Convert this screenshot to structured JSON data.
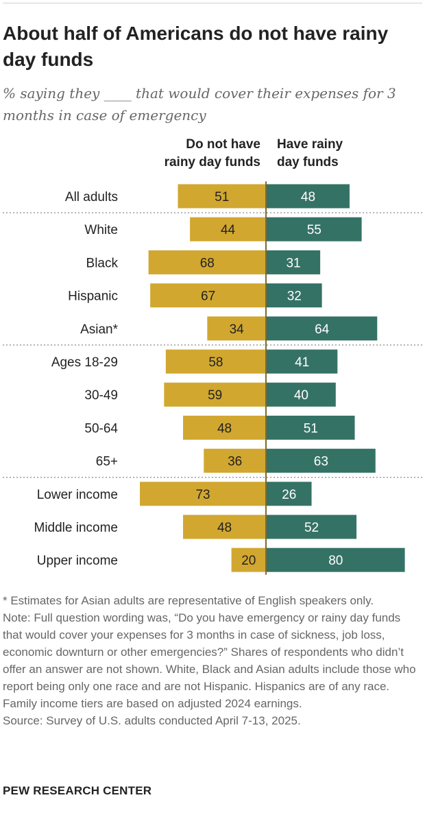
{
  "header": {
    "title": "About half of Americans do not have rainy day funds",
    "subtitle": "% saying they ____ that would cover their expenses for 3 months in case of emergency"
  },
  "colors": {
    "no_funds": "#D1A730",
    "have_funds": "#357266",
    "axis": "#7a6a2e",
    "divider": "#9a9a9a"
  },
  "chart_data": {
    "type": "bar",
    "orientation": "diverging-horizontal",
    "series": [
      {
        "name": "Do not have rainy day funds",
        "values": [
          51,
          44,
          68,
          67,
          34,
          58,
          59,
          48,
          36,
          73,
          48,
          20
        ]
      },
      {
        "name": "Have rainy day funds",
        "values": [
          48,
          55,
          31,
          32,
          64,
          41,
          40,
          51,
          63,
          26,
          52,
          80
        ]
      }
    ],
    "categories": [
      "All adults",
      "White",
      "Black",
      "Hispanic",
      "Asian*",
      "Ages 18-29",
      "30-49",
      "50-64",
      "65+",
      "Lower income",
      "Middle income",
      "Upper income"
    ],
    "groups": [
      {
        "start": 0,
        "end": 0
      },
      {
        "start": 1,
        "end": 4
      },
      {
        "start": 5,
        "end": 8
      },
      {
        "start": 9,
        "end": 11
      }
    ],
    "column_headers": {
      "left_line1": "Do not have",
      "left_line2": "rainy day funds",
      "right_line1": "Have rainy",
      "right_line2": "day funds"
    }
  },
  "notes": {
    "asterisk": "* Estimates for Asian adults are representative of English speakers only.",
    "note": "Note: Full question wording was, “Do you have emergency or rainy day funds that would cover your expenses for 3 months in case of sickness, job loss, economic downturn or other emergencies?” Shares of respondents who didn’t offer an answer are not shown. White, Black and Asian adults include those who report being only one race and are not Hispanic. Hispanics are of any race. Family income tiers are based on adjusted 2024 earnings.",
    "source": "Source: Survey of U.S. adults conducted April 7-13, 2025."
  },
  "brand": "PEW RESEARCH CENTER"
}
